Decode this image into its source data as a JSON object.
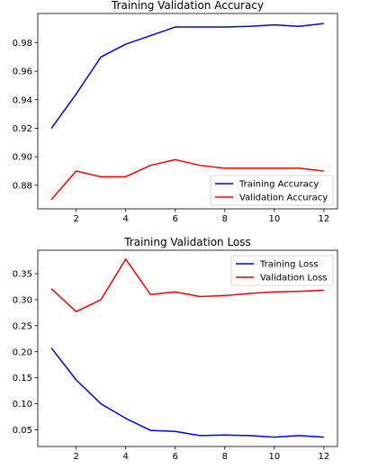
{
  "chart_data": [
    {
      "type": "line",
      "title": "Training Validation Accuracy",
      "xlabel": "",
      "ylabel": "",
      "x": [
        1,
        2,
        3,
        4,
        5,
        6,
        7,
        8,
        9,
        10,
        11,
        12
      ],
      "xlim": [
        0.45,
        12.55
      ],
      "ylim": [
        0.8635,
        1.0005
      ],
      "xticks": [
        2,
        4,
        6,
        8,
        10,
        12
      ],
      "yticks": [
        0.88,
        0.9,
        0.92,
        0.94,
        0.96,
        0.98
      ],
      "tick_labels_y": [
        "0.88",
        "0.90",
        "0.92",
        "0.94",
        "0.96",
        "0.98"
      ],
      "tick_labels_x": [
        "2",
        "4",
        "6",
        "8",
        "10",
        "12"
      ],
      "grid": false,
      "legend_position": "lower-right",
      "series": [
        {
          "name": "Training Accuracy",
          "color": "#0000ff",
          "values": [
            0.92,
            0.944,
            0.97,
            0.979,
            0.985,
            0.991,
            0.991,
            0.991,
            0.9915,
            0.9925,
            0.9915,
            0.9935
          ]
        },
        {
          "name": "Validation Accuracy",
          "color": "#ff0000",
          "values": [
            0.87,
            0.89,
            0.886,
            0.886,
            0.894,
            0.898,
            0.894,
            0.892,
            0.892,
            0.892,
            0.892,
            0.89
          ]
        }
      ]
    },
    {
      "type": "line",
      "title": "Training Validation Loss",
      "xlabel": "",
      "ylabel": "",
      "x": [
        1,
        2,
        3,
        4,
        5,
        6,
        7,
        8,
        9,
        10,
        11,
        12
      ],
      "xlim": [
        0.45,
        12.55
      ],
      "ylim": [
        0.018,
        0.395
      ],
      "xticks": [
        2,
        4,
        6,
        8,
        10,
        12
      ],
      "yticks": [
        0.05,
        0.1,
        0.15,
        0.2,
        0.25,
        0.3,
        0.35
      ],
      "tick_labels_y": [
        "0.05",
        "0.10",
        "0.15",
        "0.20",
        "0.25",
        "0.30",
        "0.35"
      ],
      "tick_labels_x": [
        "2",
        "4",
        "6",
        "8",
        "10",
        "12"
      ],
      "grid": false,
      "legend_position": "upper-right",
      "series": [
        {
          "name": "Training Loss",
          "color": "#0000ff",
          "values": [
            0.207,
            0.146,
            0.1,
            0.072,
            0.049,
            0.047,
            0.039,
            0.04,
            0.039,
            0.036,
            0.039,
            0.036
          ]
        },
        {
          "name": "Validation Loss",
          "color": "#ff0000",
          "values": [
            0.321,
            0.277,
            0.3,
            0.378,
            0.31,
            0.315,
            0.306,
            0.308,
            0.312,
            0.315,
            0.316,
            0.318
          ]
        }
      ]
    }
  ]
}
